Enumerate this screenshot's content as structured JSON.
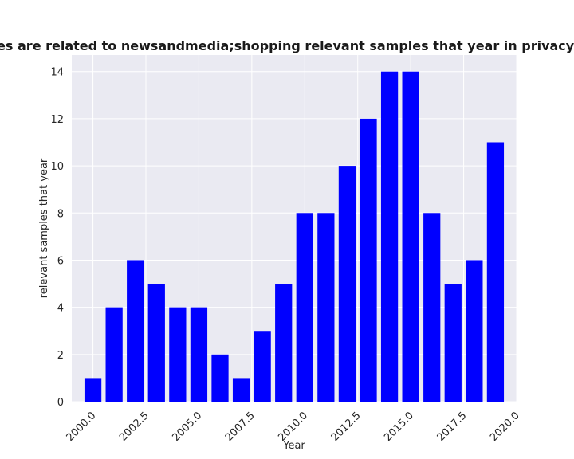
{
  "chart_data": {
    "type": "bar",
    "title": "categories are related to newsandmedia;shopping relevant samples that year in privacy policies",
    "xlabel": "Year",
    "ylabel": "relevant samples that year",
    "x": [
      2000,
      2001,
      2002,
      2003,
      2004,
      2005,
      2006,
      2007,
      2008,
      2009,
      2010,
      2011,
      2012,
      2013,
      2014,
      2015,
      2016,
      2017,
      2018,
      2019
    ],
    "values": [
      1,
      4,
      6,
      5,
      4,
      4,
      2,
      1,
      3,
      5,
      8,
      8,
      10,
      12,
      14,
      14,
      8,
      5,
      6,
      11
    ],
    "xlim": [
      1999.0,
      2020.0
    ],
    "ylim": [
      0,
      14.7
    ],
    "xticks": [
      2000.0,
      2002.5,
      2005.0,
      2007.5,
      2010.0,
      2012.5,
      2015.0,
      2017.5,
      2020.0
    ],
    "xtick_labels": [
      "2000.0",
      "2002.5",
      "2005.0",
      "2007.5",
      "2010.0",
      "2012.5",
      "2015.0",
      "2017.5",
      "2020.0"
    ],
    "yticks": [
      0,
      2,
      4,
      6,
      8,
      10,
      12,
      14
    ],
    "ytick_labels": [
      "0",
      "2",
      "4",
      "6",
      "8",
      "10",
      "12",
      "14"
    ],
    "bar_color": "#0000ff",
    "background": "#eaeaf2",
    "grid": true,
    "grid_color": "#ffffff"
  }
}
